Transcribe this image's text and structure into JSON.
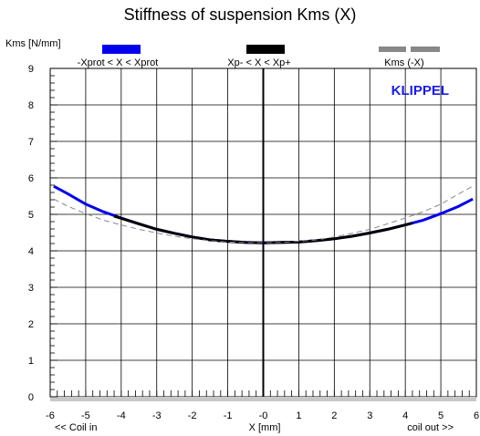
{
  "chart_data": {
    "type": "line",
    "title": "Stiffness of suspension Kms (X)",
    "ylabel": "Kms [N/mm]",
    "xlabel": "X [mm]",
    "xlabel_left": "<< Coil in",
    "xlabel_right": "coil out >>",
    "brand": "KLIPPEL",
    "xlim": [
      -6,
      6
    ],
    "ylim": [
      0,
      9
    ],
    "x_ticks": [
      -6,
      -5,
      -4,
      -3,
      -2,
      -1,
      0,
      1,
      2,
      3,
      4,
      5,
      6
    ],
    "y_ticks": [
      0,
      1,
      2,
      3,
      4,
      5,
      6,
      7,
      8,
      9
    ],
    "x_tick_labels": [
      "-6",
      "-5",
      "-4",
      "-3",
      "-2",
      "-1",
      "-0",
      "1",
      "2",
      "3",
      "4",
      "5",
      "6"
    ],
    "grid": true,
    "legend": [
      {
        "label": "-Xprot < X < Xprot",
        "color": "#0000ee",
        "style": "solid"
      },
      {
        "label": "Xp- < X < Xp+",
        "color": "#000000",
        "style": "solid"
      },
      {
        "label": "Kms (-X)",
        "color": "#888888",
        "style": "dashed"
      }
    ],
    "series": [
      {
        "name": "-Xprot < X < Xprot",
        "color": "#0000ee",
        "x": [
          -5.9,
          -5.5,
          -5,
          -4.5,
          -4,
          -3.5,
          -3,
          -2.5,
          -2,
          -1.5,
          -1,
          -0.5,
          0,
          0.5,
          1,
          1.5,
          2,
          2.5,
          3,
          3.5,
          4,
          4.5,
          5,
          5.5,
          5.9
        ],
        "values": [
          5.77,
          5.56,
          5.28,
          5.07,
          4.9,
          4.74,
          4.59,
          4.48,
          4.38,
          4.3,
          4.26,
          4.23,
          4.22,
          4.23,
          4.24,
          4.28,
          4.33,
          4.4,
          4.49,
          4.59,
          4.71,
          4.84,
          5.02,
          5.22,
          5.42
        ]
      },
      {
        "name": "Xp- < X < Xp+",
        "color": "#000000",
        "x": [
          -4.2,
          -3.5,
          -3,
          -2.5,
          -2,
          -1.5,
          -1,
          -0.5,
          0,
          0.5,
          1,
          1.5,
          2,
          2.5,
          3,
          3.5,
          4,
          4.2
        ],
        "values": [
          4.95,
          4.74,
          4.59,
          4.48,
          4.38,
          4.3,
          4.26,
          4.23,
          4.22,
          4.23,
          4.24,
          4.28,
          4.33,
          4.4,
          4.49,
          4.59,
          4.71,
          4.76
        ]
      },
      {
        "name": "Kms (-X)",
        "color": "#888888",
        "x": [
          -5.9,
          -5.5,
          -5,
          -4.5,
          -4,
          -3.5,
          -3,
          -2.5,
          -2,
          -1.5,
          -1,
          -0.5,
          0,
          0.5,
          1,
          1.5,
          2,
          2.5,
          3,
          3.5,
          4,
          4.5,
          5,
          5.5,
          5.9
        ],
        "values": [
          5.42,
          5.22,
          5.02,
          4.84,
          4.71,
          4.59,
          4.49,
          4.4,
          4.33,
          4.28,
          4.24,
          4.23,
          4.22,
          4.23,
          4.26,
          4.3,
          4.38,
          4.48,
          4.59,
          4.74,
          4.9,
          5.07,
          5.28,
          5.56,
          5.77
        ]
      }
    ]
  }
}
